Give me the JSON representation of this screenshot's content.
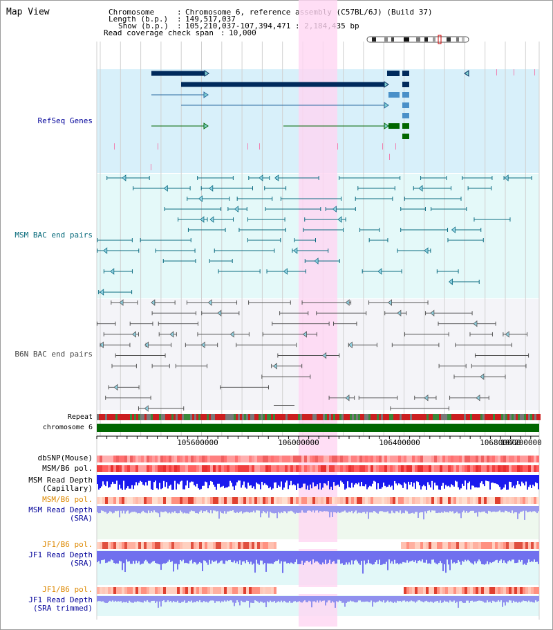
{
  "window": {
    "title": "Map View"
  },
  "header": {
    "chromosome_key": "Chromosome",
    "chromosome_value": "Chromosome 6, reference assembly (C57BL/6J) (Build 37)",
    "length_key": "Length (b.p.)",
    "length_value": "149,517,037",
    "show_key": "Show (b.p.)",
    "show_value": "105,210,037-107,394,471 : 2,184,435 bp",
    "coverage_key": "Read coverage check span",
    "coverage_value": "10,000"
  },
  "tracks": {
    "refseq": {
      "label": "RefSeq Genes",
      "color": "#000099"
    },
    "msm_bac": {
      "label": "MSM BAC end pairs",
      "color": "#006677"
    },
    "b6n_bac": {
      "label": "B6N BAC end pairs",
      "color": "#444444"
    },
    "repeat": {
      "label": "Repeat"
    },
    "chromosome": {
      "label": "chromosome 6"
    },
    "dbsnp": {
      "label": "dbSNP(Mouse)"
    },
    "msm_b6_pol_1": {
      "label": "MSM/B6 pol."
    },
    "msm_read_depth_cap": {
      "line1": "MSM Read Depth",
      "line2": "(Capillary)"
    },
    "msm_b6_pol_2": {
      "label": "MSM/B6 pol.",
      "color": "#dd8800"
    },
    "msm_read_depth_sra": {
      "line1": "MSM Read Depth",
      "line2": "(SRA)",
      "color": "#000099"
    },
    "jf1_b6_pol_1": {
      "label": "JF1/B6 pol.",
      "color": "#dd8800"
    },
    "jf1_read_depth_sra": {
      "line1": "JF1 Read Depth",
      "line2": "(SRA)",
      "color": "#000099"
    },
    "jf1_b6_pol_2": {
      "label": "JF1/B6 pol.",
      "color": "#dd8800"
    },
    "jf1_read_depth_trim": {
      "line1": "JF1 Read Depth",
      "line2": "(SRA trimmed)",
      "color": "#000099"
    }
  },
  "axis": {
    "ticks": [
      "105600000",
      "106000000",
      "106400000",
      "106800000",
      "107200000"
    ]
  },
  "colors": {
    "highlight": "#ffd6f2",
    "refseq_bg": "#d8f0fa",
    "msm_bg": "#e4f9f9",
    "b6n_bg": "#f4f4f8",
    "chrom_band": "#006600",
    "refseq_dark": "#002a5c",
    "refseq_mid": "#4a90c8",
    "refseq_green": "#006600"
  }
}
